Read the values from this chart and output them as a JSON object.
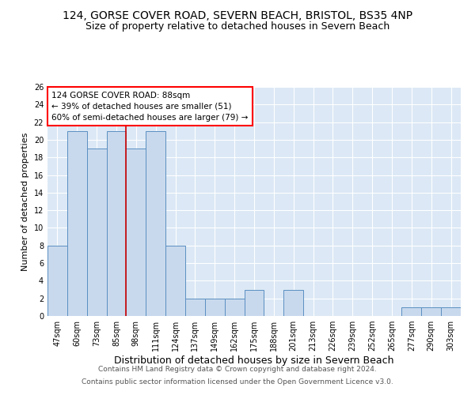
{
  "title1": "124, GORSE COVER ROAD, SEVERN BEACH, BRISTOL, BS35 4NP",
  "title2": "Size of property relative to detached houses in Severn Beach",
  "xlabel": "Distribution of detached houses by size in Severn Beach",
  "ylabel": "Number of detached properties",
  "categories": [
    "47sqm",
    "60sqm",
    "73sqm",
    "85sqm",
    "98sqm",
    "111sqm",
    "124sqm",
    "137sqm",
    "149sqm",
    "162sqm",
    "175sqm",
    "188sqm",
    "201sqm",
    "213sqm",
    "226sqm",
    "239sqm",
    "252sqm",
    "265sqm",
    "277sqm",
    "290sqm",
    "303sqm"
  ],
  "values": [
    8,
    21,
    19,
    21,
    19,
    21,
    8,
    2,
    2,
    2,
    3,
    0,
    3,
    0,
    0,
    0,
    0,
    0,
    1,
    1,
    1
  ],
  "bar_color": "#c9d9ed",
  "bar_edge_color": "#5a8fc2",
  "red_line_index": 3.5,
  "annotation_text": "124 GORSE COVER ROAD: 88sqm\n← 39% of detached houses are smaller (51)\n60% of semi-detached houses are larger (79) →",
  "annotation_box_color": "white",
  "annotation_box_edge_color": "red",
  "red_line_color": "#cc0000",
  "ylim": [
    0,
    26
  ],
  "yticks": [
    0,
    2,
    4,
    6,
    8,
    10,
    12,
    14,
    16,
    18,
    20,
    22,
    24,
    26
  ],
  "background_color": "#dce8f5",
  "grid_color": "white",
  "footer1": "Contains HM Land Registry data © Crown copyright and database right 2024.",
  "footer2": "Contains public sector information licensed under the Open Government Licence v3.0.",
  "title1_fontsize": 10,
  "title2_fontsize": 9,
  "xlabel_fontsize": 9,
  "ylabel_fontsize": 8,
  "tick_fontsize": 7,
  "annotation_fontsize": 7.5,
  "footer_fontsize": 6.5
}
